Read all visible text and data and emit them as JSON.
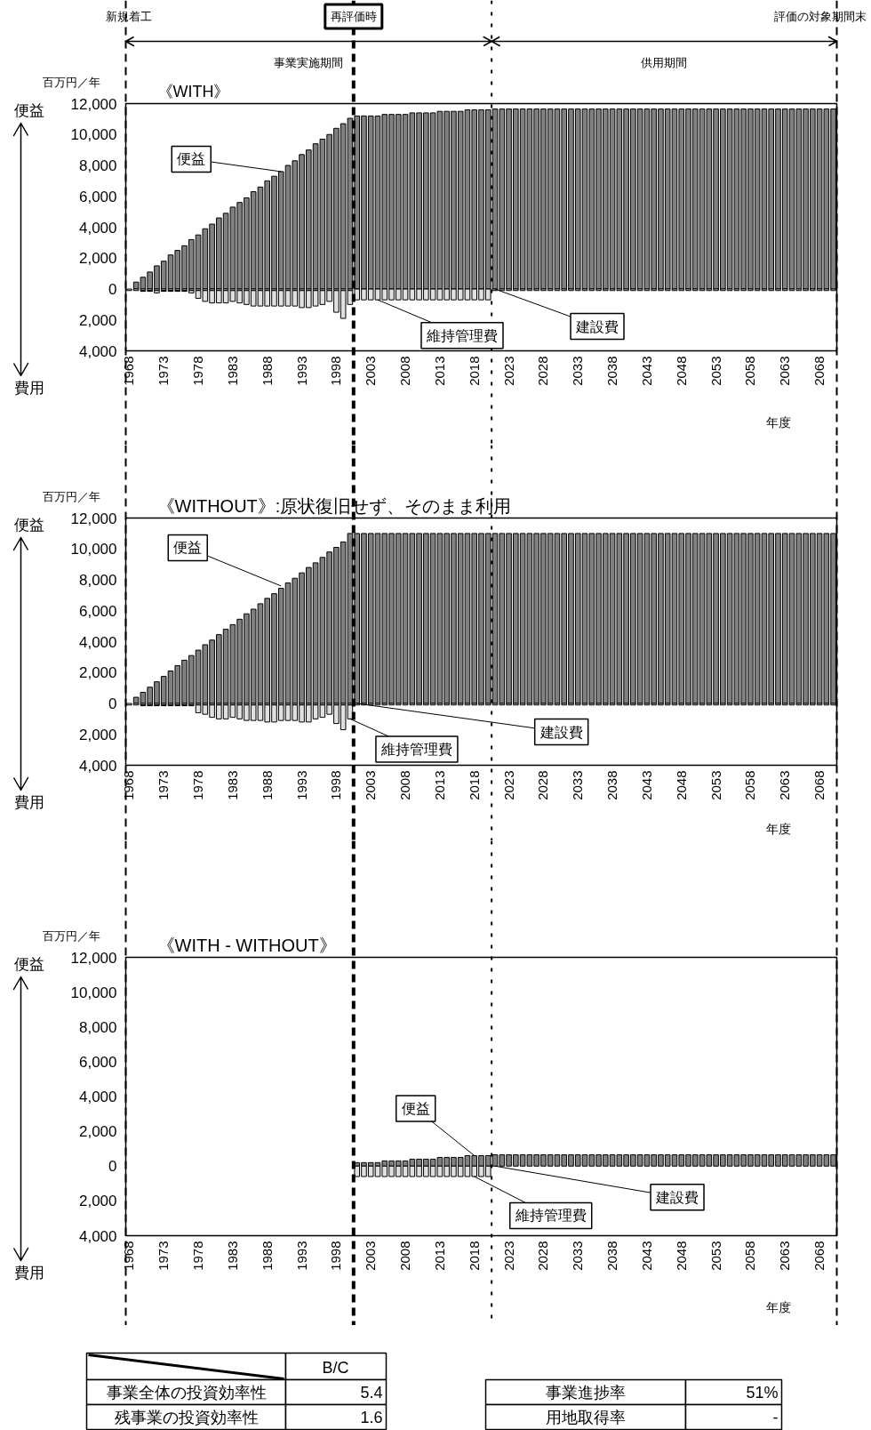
{
  "chart_data": [
    {
      "type": "bar",
      "stacked": true,
      "title": "《WITH》",
      "xlabel": "年度",
      "ylabel": "百万円／年",
      "grid": false,
      "x": [
        1968,
        1969,
        1970,
        1971,
        1972,
        1973,
        1974,
        1975,
        1976,
        1977,
        1978,
        1979,
        1980,
        1981,
        1982,
        1983,
        1984,
        1985,
        1986,
        1987,
        1988,
        1989,
        1990,
        1991,
        1992,
        1993,
        1994,
        1995,
        1996,
        1997,
        1998,
        1999,
        2000,
        2001,
        2002,
        2003,
        2004,
        2005,
        2006,
        2007,
        2008,
        2009,
        2010,
        2011,
        2012,
        2013,
        2014,
        2015,
        2016,
        2017,
        2018,
        2019,
        2020,
        2021,
        2022,
        2023,
        2024,
        2025,
        2026,
        2027,
        2028,
        2029,
        2030,
        2031,
        2032,
        2033,
        2034,
        2035,
        2036,
        2037,
        2038,
        2039,
        2040,
        2041,
        2042,
        2043,
        2044,
        2045,
        2046,
        2047,
        2048,
        2049,
        2050,
        2051,
        2052,
        2053,
        2054,
        2055,
        2056,
        2057,
        2058,
        2059,
        2060,
        2061,
        2062,
        2063,
        2064,
        2065,
        2066,
        2067,
        2068,
        2069,
        2070
      ],
      "xlim": [
        1967.5,
        2070.5
      ],
      "xticks": [
        1968,
        1973,
        1978,
        1983,
        1988,
        1993,
        1998,
        2003,
        2008,
        2013,
        2018,
        2023,
        2028,
        2033,
        2038,
        2043,
        2048,
        2053,
        2058,
        2063,
        2068
      ],
      "ylim": [
        -4000,
        12000
      ],
      "yticks": [
        {
          "value": -4000,
          "label": "4,000"
        },
        {
          "value": -2000,
          "label": "2,000"
        },
        0,
        {
          "value": 2000,
          "label": "2,000"
        },
        {
          "value": 4000,
          "label": "4,000"
        },
        {
          "value": 6000,
          "label": "6,000"
        },
        {
          "value": 8000,
          "label": "8,000"
        },
        {
          "value": 10000,
          "label": "10,000"
        },
        {
          "value": 12000,
          "label": "12,000"
        }
      ],
      "series": [
        {
          "color": "#808080",
          "values": [
            null,
            450,
            760,
            1100,
            1500,
            1800,
            2200,
            2500,
            2800,
            3200,
            3500,
            3900,
            4200,
            4600,
            4900,
            5300,
            5600,
            5900,
            6300,
            6600,
            7000,
            7300,
            7600,
            8000,
            8300,
            8700,
            9000,
            9400,
            9700,
            10000,
            10400,
            10700,
            11050,
            11200,
            11200,
            11200,
            11200,
            11300,
            11300,
            11300,
            11300,
            11400,
            11400,
            11400,
            11400,
            11500,
            11500,
            11500,
            11500,
            11600,
            11600,
            11600,
            11600,
            11650,
            11650,
            11650,
            11650,
            11650,
            11650,
            11650,
            11650,
            11650,
            11650,
            11650,
            11650,
            11650,
            11650,
            11650,
            11650,
            11650,
            11650,
            11650,
            11650,
            11650,
            11650,
            11650,
            11650,
            11650,
            11650,
            11650,
            11650,
            11650,
            11650,
            11650,
            11650,
            11650,
            11650,
            11650,
            11650,
            11650,
            11650,
            11650,
            11650,
            11650,
            11650,
            11650,
            11650,
            11650,
            11650,
            11650,
            11650,
            11650,
            11650
          ]
        },
        {
          "color": "#e0e0e0",
          "values": [
            -100,
            -100,
            -100,
            -100,
            -100,
            -100,
            -100,
            -100,
            -100,
            -100,
            -100,
            -100,
            -100,
            -100,
            -100,
            -100,
            -100,
            -100,
            -100,
            -100,
            -100,
            -100,
            -100,
            -100,
            -100,
            -100,
            -100,
            -100,
            -100,
            -100,
            -100,
            -100,
            -100,
            -700,
            -700,
            -700,
            -700,
            -700,
            -700,
            -700,
            -700,
            -700,
            -700,
            -700,
            -700,
            -700,
            -700,
            -700,
            -700,
            -700,
            -700,
            -700,
            -700,
            -100,
            -100,
            -100,
            -100,
            -100,
            -100,
            -100,
            -100,
            -100,
            -100,
            -100,
            -100,
            -100,
            -100,
            -100,
            -100,
            -100,
            -100,
            -100,
            -100,
            -100,
            -100,
            -100,
            -100,
            -100,
            -100,
            -100,
            -100,
            -100,
            -100,
            -100,
            -100,
            -100,
            -100,
            -100,
            -100,
            -100,
            -100,
            -100,
            -100,
            -100,
            -100,
            -100,
            -100,
            -100,
            -100,
            -100,
            -100,
            -100,
            -100
          ]
        },
        {
          "color": "#e0e0e0",
          "x": [
            1970,
            1971,
            1972,
            1973,
            1974,
            1975,
            1976,
            1977,
            1978,
            1979,
            1980,
            1981,
            1982,
            1983,
            1984,
            1985,
            1986,
            1987,
            1988,
            1989,
            1990,
            1991,
            1992,
            1993,
            1994,
            1995,
            1996,
            1997,
            1998,
            1999,
            2000
          ],
          "values": [
            -50,
            -50,
            -150,
            -50,
            -50,
            -50,
            -50,
            -150,
            -500,
            -700,
            -800,
            -800,
            -800,
            -700,
            -800,
            -900,
            -1000,
            -1000,
            -1000,
            -1000,
            -1000,
            -1000,
            -1000,
            -1100,
            -1100,
            -1000,
            -900,
            -700,
            -1400,
            -1800,
            -900
          ]
        }
      ],
      "ref_lines": [
        {
          "axis": "x",
          "value": 1967.5,
          "label": "新規着工",
          "line_style": "dashed"
        },
        {
          "axis": "x",
          "value": 2000.5,
          "label": "再評価時",
          "line_style": "dashed"
        },
        {
          "axis": "x",
          "value": 2020.5,
          "label": null,
          "line_style": "dotted"
        },
        {
          "axis": "x",
          "value": 2070.5,
          "label": "評価の対象期間末",
          "line_style": "dashed"
        }
      ],
      "annotations": [
        "便益",
        "費用",
        "事業実施期間",
        "供用期間",
        {
          "text": "便益",
          "x": 1990,
          "y": 7600
        },
        {
          "text": "維持管理費",
          "x": 2004,
          "y": -700
        },
        {
          "text": "建設費",
          "x": 2021,
          "y": 0
        }
      ]
    },
    {
      "type": "bar",
      "stacked": true,
      "title": "《WITHOUT》:原状復旧せず、そのまま利用",
      "xlabel": "年度",
      "ylabel": "百万円／年",
      "grid": false,
      "x": [
        1968,
        1969,
        1970,
        1971,
        1972,
        1973,
        1974,
        1975,
        1976,
        1977,
        1978,
        1979,
        1980,
        1981,
        1982,
        1983,
        1984,
        1985,
        1986,
        1987,
        1988,
        1989,
        1990,
        1991,
        1992,
        1993,
        1994,
        1995,
        1996,
        1997,
        1998,
        1999,
        2000,
        2001,
        2002,
        2003,
        2004,
        2005,
        2006,
        2007,
        2008,
        2009,
        2010,
        2011,
        2012,
        2013,
        2014,
        2015,
        2016,
        2017,
        2018,
        2019,
        2020,
        2021,
        2022,
        2023,
        2024,
        2025,
        2026,
        2027,
        2028,
        2029,
        2030,
        2031,
        2032,
        2033,
        2034,
        2035,
        2036,
        2037,
        2038,
        2039,
        2040,
        2041,
        2042,
        2043,
        2044,
        2045,
        2046,
        2047,
        2048,
        2049,
        2050,
        2051,
        2052,
        2053,
        2054,
        2055,
        2056,
        2057,
        2058,
        2059,
        2060,
        2061,
        2062,
        2063,
        2064,
        2065,
        2066,
        2067,
        2068,
        2069,
        2070
      ],
      "xlim": [
        1967.5,
        2070.5
      ],
      "xticks": [
        1968,
        1973,
        1978,
        1983,
        1988,
        1993,
        1998,
        2003,
        2008,
        2013,
        2018,
        2023,
        2028,
        2033,
        2038,
        2043,
        2048,
        2053,
        2058,
        2063,
        2068
      ],
      "ylim": [
        -4000,
        12000
      ],
      "yticks": [
        {
          "value": -4000,
          "label": "4,000"
        },
        {
          "value": -2000,
          "label": "2,000"
        },
        0,
        {
          "value": 2000,
          "label": "2,000"
        },
        {
          "value": 4000,
          "label": "4,000"
        },
        {
          "value": 6000,
          "label": "6,000"
        },
        {
          "value": 8000,
          "label": "8,000"
        },
        {
          "value": 10000,
          "label": "10,000"
        },
        {
          "value": 12000,
          "label": "12,000"
        }
      ],
      "series": [
        {
          "color": "#808080",
          "values": [
            null,
            400,
            720,
            1050,
            1400,
            1750,
            2100,
            2450,
            2800,
            3100,
            3450,
            3800,
            4100,
            4450,
            4800,
            5100,
            5450,
            5800,
            6100,
            6450,
            6800,
            7100,
            7450,
            7800,
            8100,
            8450,
            8800,
            9100,
            9450,
            9800,
            10100,
            10450,
            11000,
            11000,
            11000,
            11000,
            11000,
            11000,
            11000,
            11000,
            11000,
            11000,
            11000,
            11000,
            11000,
            11000,
            11000,
            11000,
            11000,
            11000,
            11000,
            11000,
            11000,
            11000,
            11000,
            11000,
            11000,
            11000,
            11000,
            11000,
            11000,
            11000,
            11000,
            11000,
            11000,
            11000,
            11000,
            11000,
            11000,
            11000,
            11000,
            11000,
            11000,
            11000,
            11000,
            11000,
            11000,
            11000,
            11000,
            11000,
            11000,
            11000,
            11000,
            11000,
            11000,
            11000,
            11000,
            11000,
            11000,
            11000,
            11000,
            11000,
            11000,
            11000,
            11000,
            11000,
            11000,
            11000,
            11000,
            11000,
            11000,
            11000,
            11000
          ]
        },
        {
          "color": "#e0e0e0",
          "values": [
            -100,
            -100,
            -100,
            -100,
            -100,
            -100,
            -100,
            -100,
            -100,
            -100,
            -100,
            -100,
            -100,
            -100,
            -100,
            -100,
            -100,
            -100,
            -100,
            -100,
            -100,
            -100,
            -100,
            -100,
            -100,
            -100,
            -100,
            -100,
            -100,
            -100,
            -100,
            -100,
            -100,
            -100,
            -100,
            -100,
            -100,
            -100,
            -100,
            -100,
            -100,
            -100,
            -100,
            -100,
            -100,
            -100,
            -100,
            -100,
            -100,
            -100,
            -100,
            -100,
            -100,
            -100,
            -100,
            -100,
            -100,
            -100,
            -100,
            -100,
            -100,
            -100,
            -100,
            -100,
            -100,
            -100,
            -100,
            -100,
            -100,
            -100,
            -100,
            -100,
            -100,
            -100,
            -100,
            -100,
            -100,
            -100,
            -100,
            -100,
            -100,
            -100,
            -100,
            -100,
            -100,
            -100,
            -100,
            -100,
            -100,
            -100,
            -100,
            -100,
            -100,
            -100,
            -100,
            -100,
            -100,
            -100,
            -100,
            -100,
            -100,
            -100,
            -100
          ]
        },
        {
          "color": "#e0e0e0",
          "x": [
            1970,
            1971,
            1972,
            1973,
            1974,
            1975,
            1976,
            1977,
            1978,
            1979,
            1980,
            1981,
            1982,
            1983,
            1984,
            1985,
            1986,
            1987,
            1988,
            1989,
            1990,
            1991,
            1992,
            1993,
            1994,
            1995,
            1996,
            1997,
            1998,
            1999,
            2000
          ],
          "values": [
            -50,
            -50,
            -50,
            -50,
            -50,
            -50,
            -50,
            -50,
            -500,
            -600,
            -800,
            -900,
            -900,
            -800,
            -900,
            -1000,
            -1000,
            -1000,
            -1100,
            -1100,
            -1000,
            -1000,
            -1000,
            -1100,
            -1100,
            -900,
            -800,
            -600,
            -1200,
            -1600,
            -900
          ]
        }
      ],
      "ref_lines": [
        {
          "axis": "x",
          "value": 1967.5,
          "label": null,
          "line_style": "dashed"
        },
        {
          "axis": "x",
          "value": 2000.5,
          "label": null,
          "line_style": "dashed"
        },
        {
          "axis": "x",
          "value": 2020.5,
          "label": null,
          "line_style": "dotted"
        },
        {
          "axis": "x",
          "value": 2070.5,
          "label": null,
          "line_style": "dashed"
        }
      ],
      "annotations": [
        "便益",
        "費用",
        {
          "text": "便益",
          "x": 1990,
          "y": 7600
        },
        {
          "text": "維持管理費",
          "x": 2000,
          "y": -1000
        },
        {
          "text": "建設費",
          "x": 2001,
          "y": 0
        }
      ]
    },
    {
      "type": "bar",
      "stacked": true,
      "title": "《WITH - WITHOUT》",
      "xlabel": "年度",
      "ylabel": "百万円／年",
      "grid": false,
      "x": [
        2001,
        2002,
        2003,
        2004,
        2005,
        2006,
        2007,
        2008,
        2009,
        2010,
        2011,
        2012,
        2013,
        2014,
        2015,
        2016,
        2017,
        2018,
        2019,
        2020,
        2021,
        2022,
        2023,
        2024,
        2025,
        2026,
        2027,
        2028,
        2029,
        2030,
        2031,
        2032,
        2033,
        2034,
        2035,
        2036,
        2037,
        2038,
        2039,
        2040,
        2041,
        2042,
        2043,
        2044,
        2045,
        2046,
        2047,
        2048,
        2049,
        2050,
        2051,
        2052,
        2053,
        2054,
        2055,
        2056,
        2057,
        2058,
        2059,
        2060,
        2061,
        2062,
        2063,
        2064,
        2065,
        2066,
        2067,
        2068,
        2069,
        2070
      ],
      "xlim": [
        1967.5,
        2070.5
      ],
      "xticks": [
        1968,
        1973,
        1978,
        1983,
        1988,
        1993,
        1998,
        2003,
        2008,
        2013,
        2018,
        2023,
        2028,
        2033,
        2038,
        2043,
        2048,
        2053,
        2058,
        2063,
        2068
      ],
      "ylim": [
        -4000,
        12000
      ],
      "yticks": [
        {
          "value": -4000,
          "label": "4,000"
        },
        {
          "value": -2000,
          "label": "2,000"
        },
        0,
        {
          "value": 2000,
          "label": "2,000"
        },
        {
          "value": 4000,
          "label": "4,000"
        },
        {
          "value": 6000,
          "label": "6,000"
        },
        {
          "value": 8000,
          "label": "8,000"
        },
        {
          "value": 10000,
          "label": "10,000"
        },
        {
          "value": 12000,
          "label": "12,000"
        }
      ],
      "series": [
        {
          "color": "#808080",
          "values": [
            200,
            200,
            200,
            200,
            300,
            300,
            300,
            300,
            400,
            400,
            400,
            400,
            500,
            500,
            500,
            500,
            600,
            600,
            600,
            600,
            650,
            650,
            650,
            650,
            650,
            650,
            650,
            650,
            650,
            650,
            650,
            650,
            650,
            650,
            650,
            650,
            650,
            650,
            650,
            650,
            650,
            650,
            650,
            650,
            650,
            650,
            650,
            650,
            650,
            650,
            650,
            650,
            650,
            650,
            650,
            650,
            650,
            650,
            650,
            650,
            650,
            650,
            650,
            650,
            650,
            650,
            650,
            650,
            650,
            650
          ]
        },
        {
          "color": "#e0e0e0",
          "x": [
            2001,
            2002,
            2003,
            2004,
            2005,
            2006,
            2007,
            2008,
            2009,
            2010,
            2011,
            2012,
            2013,
            2014,
            2015,
            2016,
            2017,
            2018,
            2019,
            2020
          ],
          "values": [
            -600,
            -600,
            -600,
            -600,
            -600,
            -600,
            -600,
            -600,
            -600,
            -600,
            -600,
            -600,
            -600,
            -600,
            -600,
            -600,
            -600,
            -600,
            -600,
            -600
          ]
        }
      ],
      "ref_lines": [
        {
          "axis": "x",
          "value": 1967.5,
          "label": null,
          "line_style": "dashed"
        },
        {
          "axis": "x",
          "value": 2000.5,
          "label": null,
          "line_style": "dashed"
        },
        {
          "axis": "x",
          "value": 2020.5,
          "label": null,
          "line_style": "dotted"
        },
        {
          "axis": "x",
          "value": 2070.5,
          "label": null,
          "line_style": "dashed"
        }
      ],
      "annotations": [
        "便益",
        "費用",
        {
          "text": "便益",
          "x": 2018,
          "y": 600
        },
        {
          "text": "維持管理費",
          "x": 2018,
          "y": -600
        },
        {
          "text": "建設費",
          "x": 2021,
          "y": 0
        }
      ]
    },
    {
      "type": "other",
      "annotations": [
        "B/C",
        "事業全体の投資効率性",
        "5.4",
        "残事業の投資効率性",
        "1.6",
        "事業進捗率",
        "51%",
        "用地取得率",
        "-"
      ]
    }
  ]
}
